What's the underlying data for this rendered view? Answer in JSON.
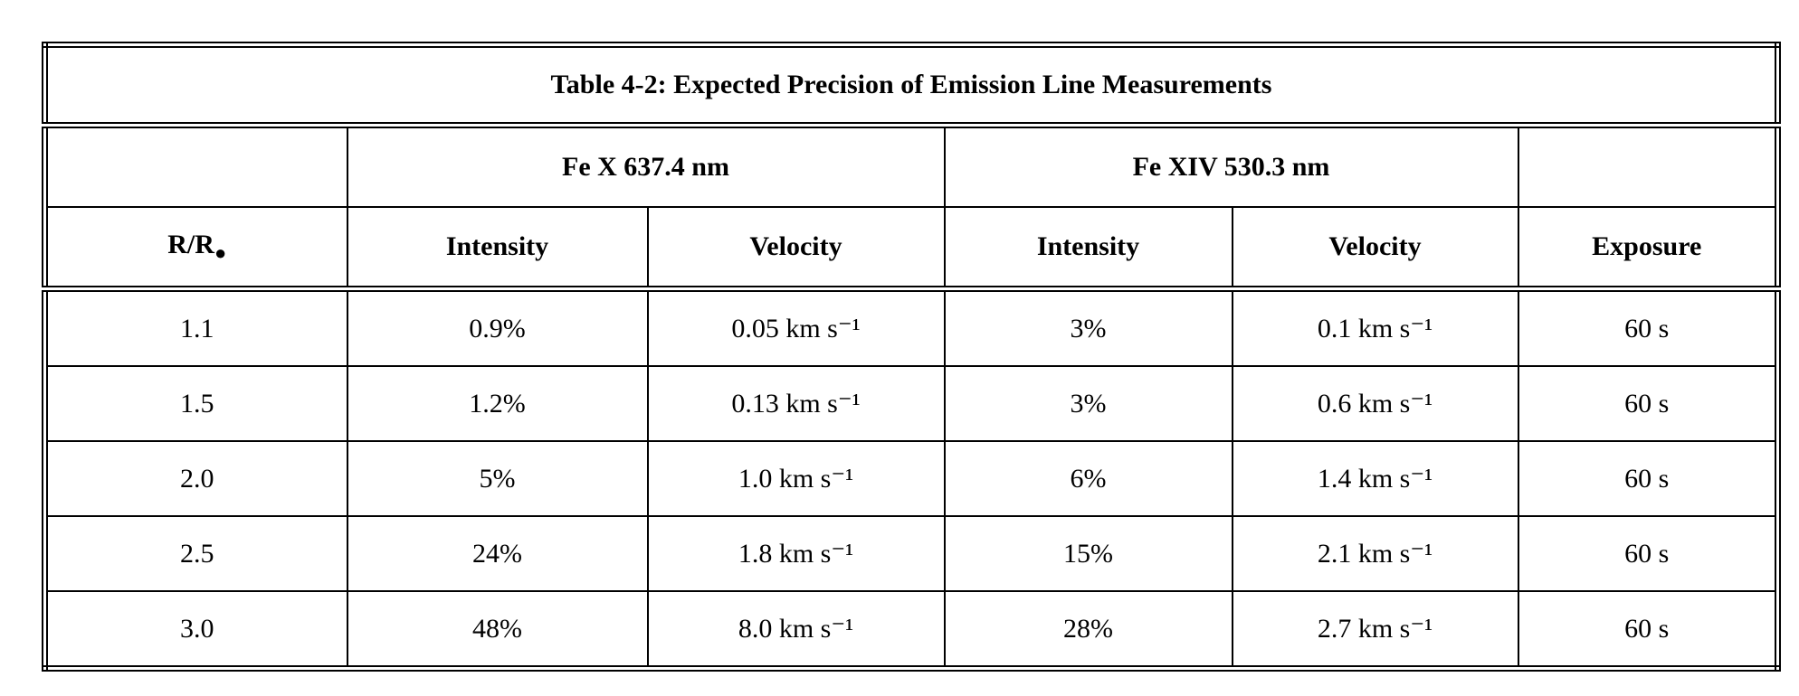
{
  "table": {
    "title": "Table 4-2:  Expected Precision of Emission Line Measurements",
    "groups": [
      "Fe X 637.4 nm",
      "Fe XIV 530.3 nm"
    ],
    "first_column": {
      "text": "R/R",
      "subscript": "●"
    },
    "columns": [
      "Intensity",
      "Velocity",
      "Intensity",
      "Velocity",
      "Exposure"
    ],
    "rows": [
      [
        "1.1",
        "0.9%",
        "0.05 km s⁻¹",
        "3%",
        "0.1 km s⁻¹",
        "60 s"
      ],
      [
        "1.5",
        "1.2%",
        "0.13 km s⁻¹",
        "3%",
        "0.6 km s⁻¹",
        "60 s"
      ],
      [
        "2.0",
        "5%",
        "1.0 km s⁻¹",
        "6%",
        "1.4 km s⁻¹",
        "60 s"
      ],
      [
        "2.5",
        "24%",
        "1.8 km s⁻¹",
        "15%",
        "2.1 km s⁻¹",
        "60 s"
      ],
      [
        "3.0",
        "48%",
        "8.0 km s⁻¹",
        "28%",
        "2.7 km s⁻¹",
        "60 s"
      ]
    ]
  }
}
